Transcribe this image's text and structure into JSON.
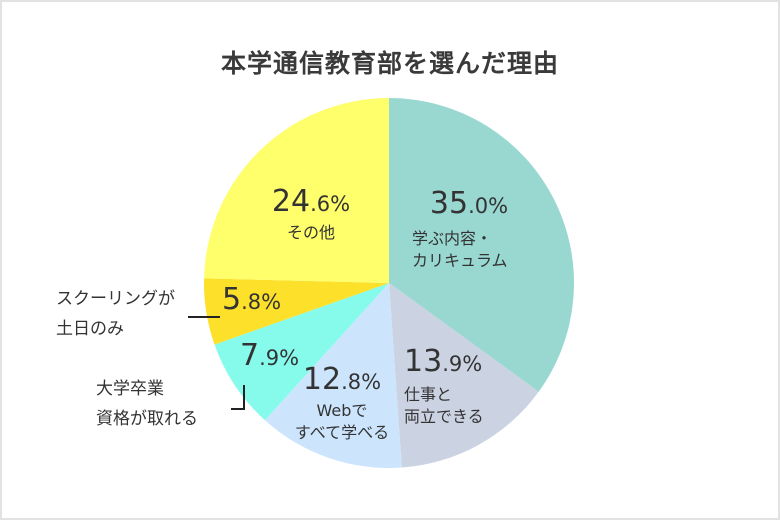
{
  "chart_data": {
    "type": "pie",
    "title": "本学通信教育部を選んだ理由",
    "start_angle": "12 o'clock",
    "direction": "clockwise",
    "slices": [
      {
        "label": "学ぶ内容・カリキュラム",
        "value": 35.0,
        "color": "#99d8d1"
      },
      {
        "label": "仕事と両立できる",
        "value": 13.9,
        "color": "#cbd3e3"
      },
      {
        "label": "Webですべて学べる",
        "value": 12.8,
        "color": "#cce5fd"
      },
      {
        "label": "大学卒業資格が取れる",
        "value": 7.9,
        "color": "#86fbeb"
      },
      {
        "label": "スクーリングが土日のみ",
        "value": 5.8,
        "color": "#fde02a"
      },
      {
        "label": "その他",
        "value": 24.6,
        "color": "#fffe6b"
      }
    ],
    "categories": [
      "学ぶ内容・カリキュラム",
      "仕事と両立できる",
      "Webですべて学べる",
      "大学卒業資格が取れる",
      "スクーリングが土日のみ",
      "その他"
    ],
    "values": [
      35.0,
      13.9,
      12.8,
      7.9,
      5.8,
      24.6
    ],
    "unit": "%",
    "legend": "none (labels on slices)"
  },
  "title": "本学通信教育部を選んだ理由",
  "labels": {
    "curriculum": {
      "int": "35",
      "dec": ".0%",
      "line1": "学ぶ内容・",
      "line2": "カリキュラム"
    },
    "work": {
      "int": "13",
      "dec": ".9%",
      "line1": "仕事と",
      "line2": "両立できる"
    },
    "web": {
      "int": "12",
      "dec": ".8%",
      "line1": "Webで",
      "line2": "すべて学べる"
    },
    "degree": {
      "int": "7",
      "dec": ".9%",
      "line1": "大学卒業",
      "line2": "資格が取れる"
    },
    "schooling": {
      "int": "5",
      "dec": ".8%",
      "line1": "スクーリングが",
      "line2": "土日のみ"
    },
    "other": {
      "int": "24",
      "dec": ".6%",
      "line1": "その他"
    }
  }
}
